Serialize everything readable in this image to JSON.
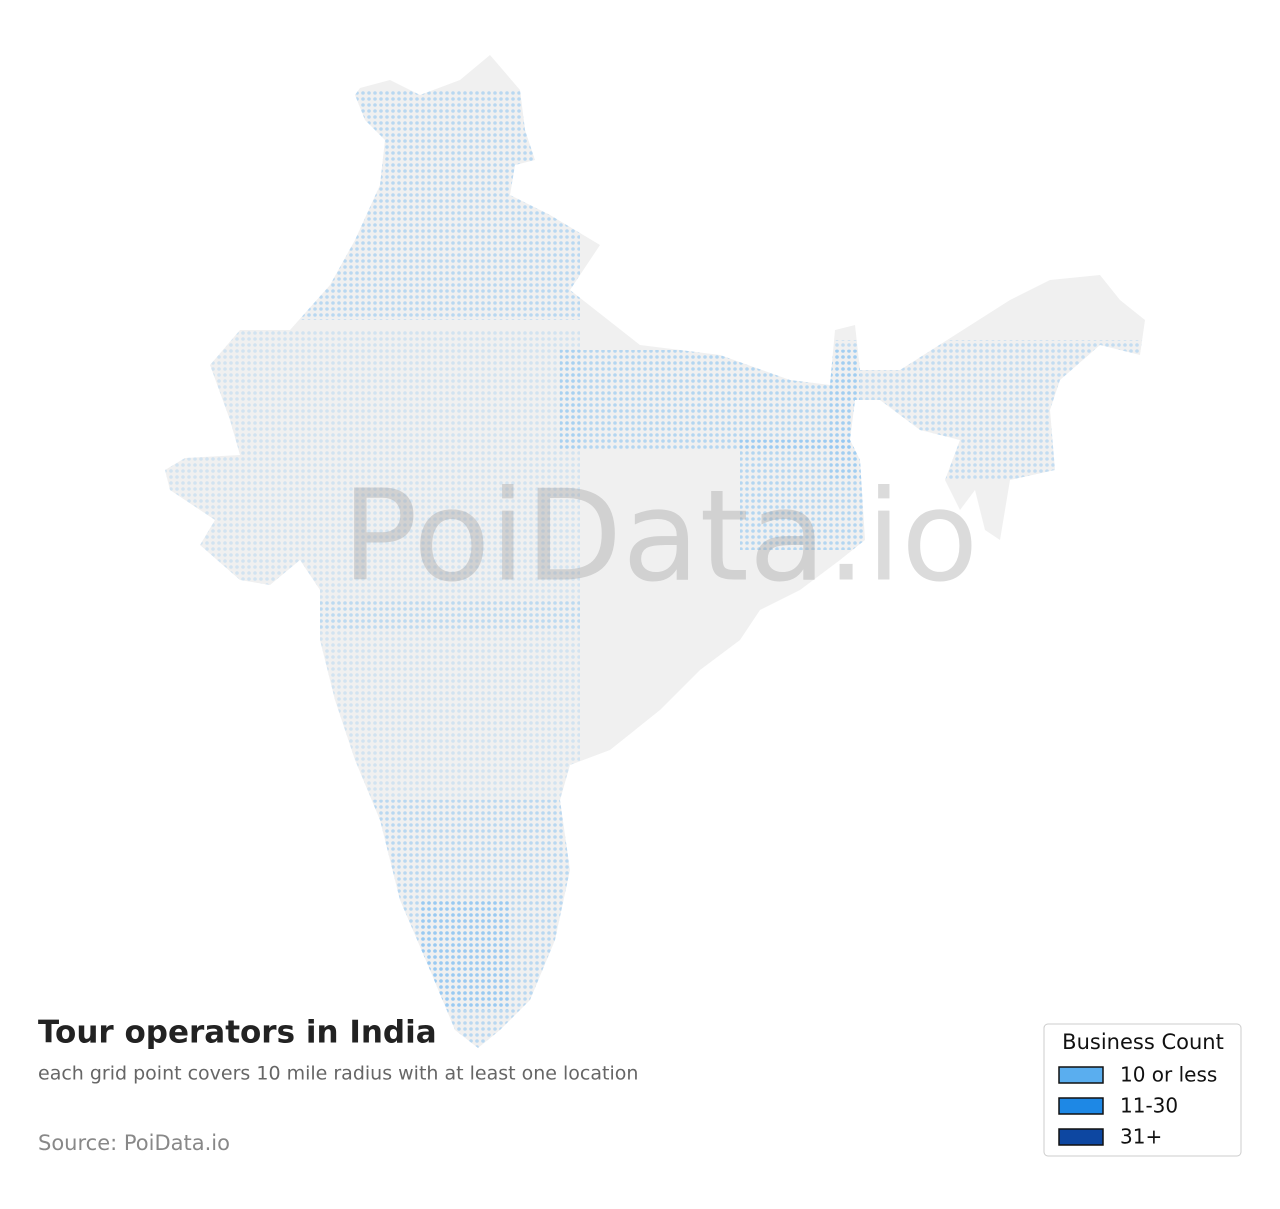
{
  "header": {
    "title": "Tour operators in India",
    "subtitle": "each grid point covers 10 mile radius with at least one location",
    "source": "Source: PoiData.io"
  },
  "watermark": "PoiData.io",
  "legend": {
    "title": "Business Count",
    "items": [
      {
        "label": "10 or less",
        "color": "#5aaeef"
      },
      {
        "label": "11-30",
        "color": "#1e88e5"
      },
      {
        "label": "31+",
        "color": "#0d47a1"
      }
    ]
  }
}
